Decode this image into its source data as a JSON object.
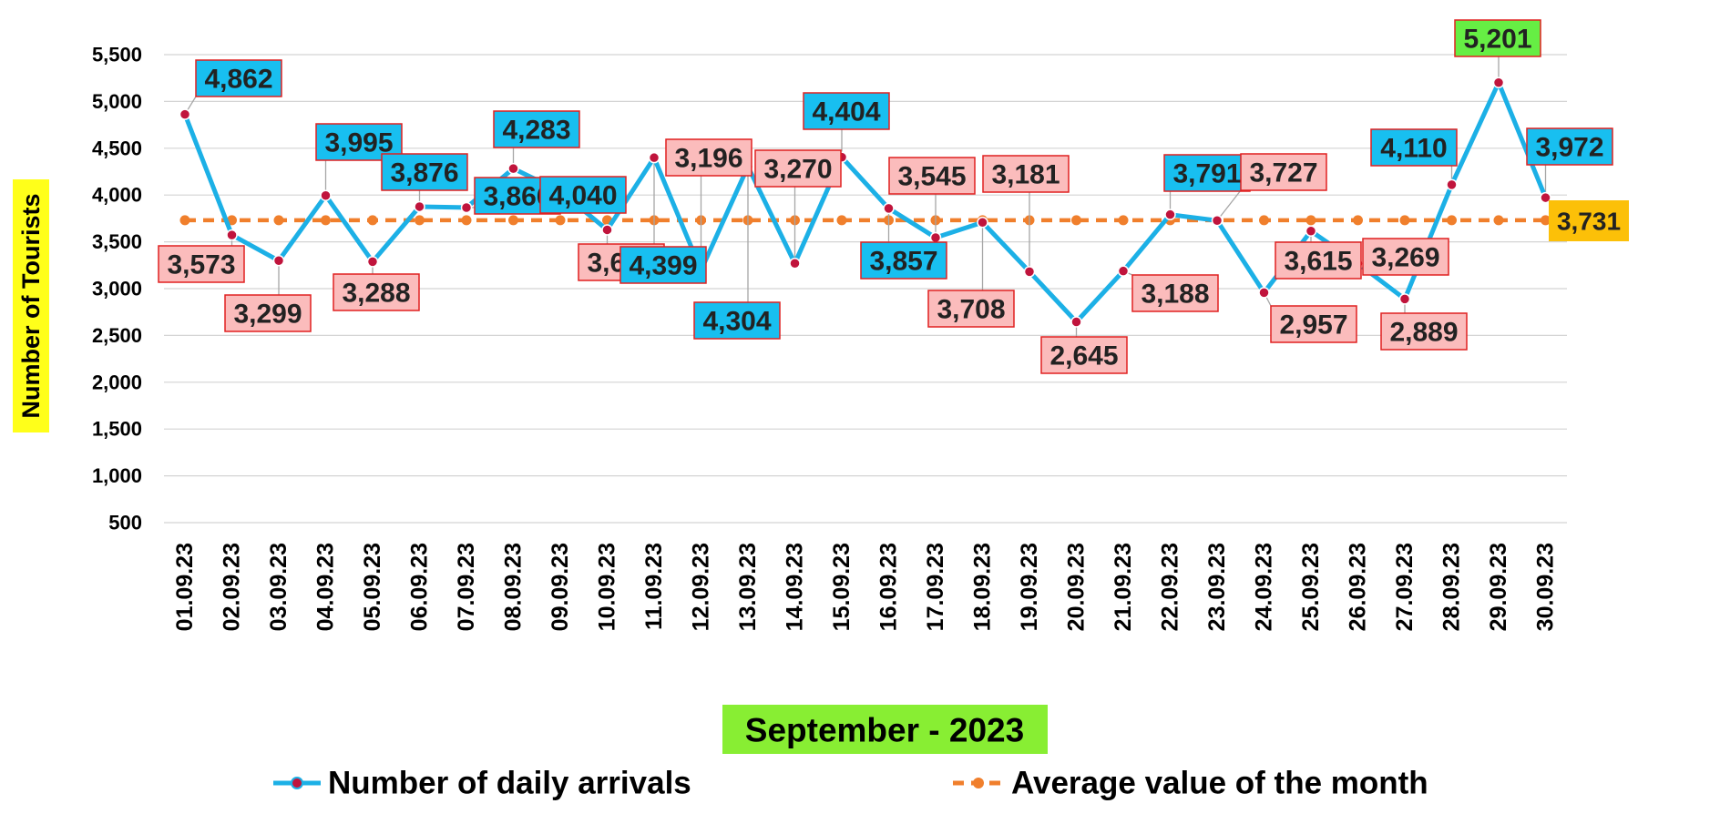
{
  "chart_data": {
    "type": "line",
    "title": "",
    "xlabel": "September - 2023",
    "ylabel": "Number of Tourists",
    "ylim": [
      500,
      5500
    ],
    "yticks": [
      "500",
      "1,000",
      "1,500",
      "2,000",
      "2,500",
      "3,000",
      "3,500",
      "4,000",
      "4,500",
      "5,000",
      "5,500"
    ],
    "grid": true,
    "legend_position": "bottom",
    "categories": [
      "01.09.23",
      "02.09.23",
      "03.09.23",
      "04.09.23",
      "05.09.23",
      "06.09.23",
      "07.09.23",
      "08.09.23",
      "09.09.23",
      "10.09.23",
      "11.09.23",
      "12.09.23",
      "13.09.23",
      "14.09.23",
      "15.09.23",
      "16.09.23",
      "17.09.23",
      "18.09.23",
      "19.09.23",
      "20.09.23",
      "21.09.23",
      "22.09.23",
      "23.09.23",
      "24.09.23",
      "25.09.23",
      "26.09.23",
      "27.09.23",
      "28.09.23",
      "29.09.23",
      "30.09.23"
    ],
    "series": [
      {
        "name": "Number of daily arrivals",
        "color": "#1cb0e6",
        "marker_color": "#c0143c",
        "values": [
          4862,
          3573,
          3299,
          3995,
          3288,
          3876,
          3866,
          4283,
          4040,
          3628,
          4399,
          3196,
          4304,
          3270,
          4404,
          3857,
          3545,
          3708,
          3181,
          2645,
          3188,
          3791,
          3727,
          2957,
          3615,
          3269,
          2889,
          4110,
          5201,
          3972
        ],
        "data_labels": [
          "4,862",
          "3,573",
          "3,299",
          "3,995",
          "3,288",
          "3,876",
          "3,866",
          "4,283",
          "4,040",
          "3,628",
          "4,399",
          "3,196",
          "4,304",
          "3,270",
          "4,404",
          "3,857",
          "3,545",
          "3,708",
          "3,181",
          "2,645",
          "3,188",
          "3,791",
          "3,727",
          "2,957",
          "3,615",
          "3,269",
          "2,889",
          "4,110",
          "5,201",
          "3,972"
        ]
      },
      {
        "name": "Average value of the month",
        "color": "#f07f2c",
        "value": 3731,
        "data_label": "3,731"
      }
    ],
    "label_colors": {
      "above_avg_fill": "#18bff0",
      "below_avg_fill": "#fbbcbc",
      "max_fill": "#66ee44",
      "avg_fill": "#fcc008",
      "label_border": "#e02020",
      "ylabel_bg": "#ffff1a",
      "xlabel_bg": "#88ee33"
    }
  }
}
